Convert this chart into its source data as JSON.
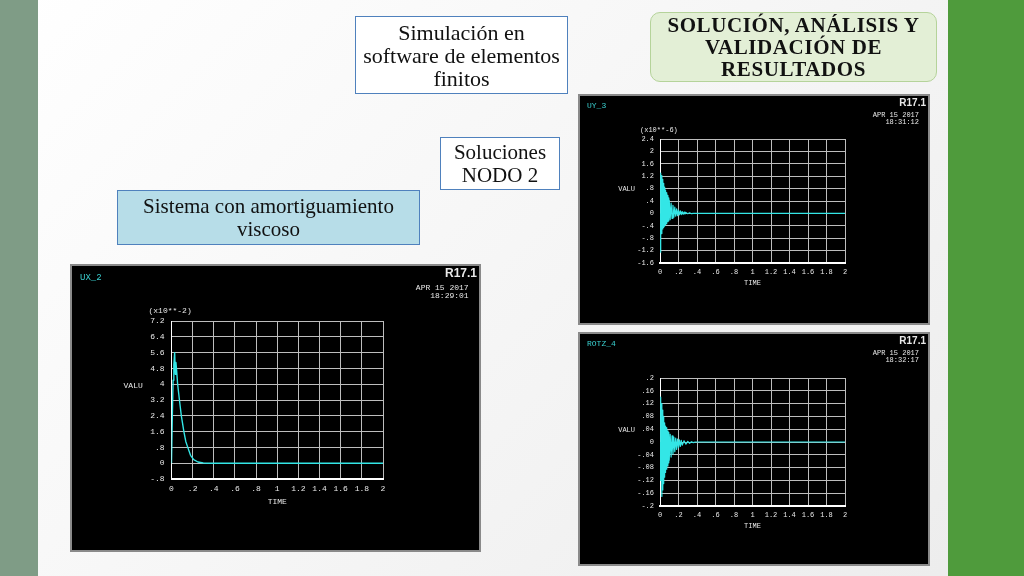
{
  "chart_data": [
    {
      "type": "other",
      "title": "SOLUCIÓN, ANÁLISIS Y VALIDACIÓN DE RESULTADOS",
      "annotations": [
        "Simulación en software de elementos finitos",
        "Soluciones NODO 2",
        "Sistema con amortiguamiento viscoso"
      ]
    },
    {
      "type": "line",
      "title": "UY_3",
      "xlabel": "TIME",
      "ylabel": "VALU",
      "annotations": [
        "R17.1",
        "APR 15 2017",
        "18:31:12",
        "(x10**-6)"
      ],
      "color": "#33e6e6",
      "x": [
        0,
        0.005,
        0.01,
        0.015,
        0.02,
        0.025,
        0.03,
        0.035,
        0.04,
        0.045,
        0.05,
        0.055,
        0.06,
        0.065,
        0.07,
        0.075,
        0.08,
        0.085,
        0.09,
        0.095,
        0.1,
        0.11,
        0.12,
        0.13,
        0.14,
        0.15,
        0.16,
        0.17,
        0.18,
        0.19,
        0.2,
        0.21,
        0.22,
        0.23,
        0.24,
        0.25,
        0.26,
        0.27,
        0.28,
        0.3,
        0.32,
        0.34,
        0.36,
        2
      ],
      "values": [
        0,
        -1.25,
        1.3,
        -0.65,
        1.22,
        -0.5,
        1.1,
        -0.45,
        0.97,
        -0.41,
        0.85,
        -0.37,
        0.75,
        -0.33,
        0.67,
        -0.3,
        0.58,
        -0.27,
        0.5,
        -0.24,
        0.43,
        -0.2,
        0.33,
        -0.16,
        0.26,
        -0.12,
        0.2,
        -0.09,
        0.15,
        -0.07,
        0.11,
        -0.05,
        0.08,
        -0.04,
        0.06,
        -0.03,
        0.04,
        -0.02,
        0.03,
        -0.01,
        0.02,
        -0.01,
        0,
        0
      ],
      "xlim": [
        0,
        2
      ],
      "xticks": [
        0,
        {
          "value": 0.2,
          "label": ".2"
        },
        {
          "value": 0.4,
          "label": ".4"
        },
        {
          "value": 0.6,
          "label": ".6"
        },
        {
          "value": 0.8,
          "label": ".8"
        },
        1,
        1.2,
        1.4,
        1.6,
        1.8,
        2
      ],
      "ylim": [
        -1.6,
        2.4
      ],
      "yticks": [
        -1.6,
        -1.2,
        {
          "value": -0.8,
          "label": "-.8"
        },
        {
          "value": -0.4,
          "label": "-.4"
        },
        0,
        {
          "value": 0.4,
          "label": ".4"
        },
        {
          "value": 0.8,
          "label": ".8"
        },
        1.2,
        1.6,
        2,
        2.4
      ],
      "grid": true
    },
    {
      "type": "line",
      "title": "UX_2",
      "xlabel": "TIME",
      "ylabel": "VALU",
      "annotations": [
        "R17.1",
        "APR 15 2017",
        "18:29:01",
        "(x10**-2)"
      ],
      "color": "#33e6e6",
      "x": [
        0,
        0.008,
        0.015,
        0.022,
        0.03,
        0.036,
        0.042,
        0.05,
        0.058,
        0.075,
        0.093,
        0.105,
        0.117,
        0.135,
        0.154,
        0.18,
        0.21,
        0.25,
        0.3,
        0.35,
        2
      ],
      "values": [
        0,
        2.4,
        4.2,
        5.0,
        5.6,
        4.5,
        5.1,
        4.6,
        4.0,
        3.2,
        2.4,
        2.0,
        1.6,
        1.1,
        0.8,
        0.4,
        0.18,
        0.06,
        0.01,
        0,
        0
      ],
      "xlim": [
        0,
        2
      ],
      "xticks": [
        0,
        {
          "value": 0.2,
          "label": ".2"
        },
        {
          "value": 0.4,
          "label": ".4"
        },
        {
          "value": 0.6,
          "label": ".6"
        },
        {
          "value": 0.8,
          "label": ".8"
        },
        1,
        1.2,
        1.4,
        1.6,
        1.8,
        2
      ],
      "ylim": [
        -0.8,
        7.2
      ],
      "yticks": [
        {
          "value": -0.8,
          "label": "-.8"
        },
        0,
        {
          "value": 0.8,
          "label": ".8"
        },
        1.6,
        2.4,
        3.2,
        4,
        4.8,
        5.6,
        6.4,
        7.2
      ],
      "grid": true
    },
    {
      "type": "line",
      "title": "ROTZ_4",
      "xlabel": "TIME",
      "ylabel": "VALU",
      "annotations": [
        "R17.1",
        "APR 15 2017",
        "18:32:17"
      ],
      "color": "#33e6e6",
      "x": [
        0,
        0.005,
        0.01,
        0.015,
        0.02,
        0.025,
        0.03,
        0.035,
        0.04,
        0.045,
        0.05,
        0.055,
        0.06,
        0.065,
        0.07,
        0.075,
        0.08,
        0.085,
        0.09,
        0.095,
        0.1,
        0.11,
        0.12,
        0.13,
        0.14,
        0.15,
        0.16,
        0.17,
        0.18,
        0.19,
        0.2,
        0.21,
        0.22,
        0.23,
        0.24,
        0.26,
        0.28,
        0.3,
        0.32,
        0.34,
        0.36,
        0.38,
        2
      ],
      "values": [
        0,
        0.14,
        -0.12,
        0.12,
        -0.17,
        0.1,
        -0.15,
        0.08,
        -0.13,
        0.06,
        -0.11,
        0.05,
        -0.095,
        0.045,
        -0.085,
        0.04,
        -0.075,
        0.035,
        -0.065,
        0.03,
        -0.057,
        0.024,
        -0.047,
        0.019,
        -0.038,
        0.015,
        -0.03,
        0.012,
        -0.023,
        0.009,
        -0.018,
        0.007,
        -0.014,
        0.005,
        -0.01,
        0.004,
        -0.007,
        0.002,
        -0.004,
        0.001,
        -0.002,
        0,
        0
      ],
      "xlim": [
        0,
        2
      ],
      "xticks": [
        0,
        {
          "value": 0.2,
          "label": ".2"
        },
        {
          "value": 0.4,
          "label": ".4"
        },
        {
          "value": 0.6,
          "label": ".6"
        },
        {
          "value": 0.8,
          "label": ".8"
        },
        1,
        1.2,
        1.4,
        1.6,
        1.8,
        2
      ],
      "ylim": [
        -0.2,
        0.2
      ],
      "yticks": [
        {
          "value": -0.2,
          "label": "-.2"
        },
        {
          "value": -0.16,
          "label": "-.16"
        },
        {
          "value": -0.12,
          "label": "-.12"
        },
        {
          "value": -0.08,
          "label": "-.08"
        },
        {
          "value": -0.04,
          "label": "-.04"
        },
        0,
        {
          "value": 0.04,
          "label": ".04"
        },
        {
          "value": 0.08,
          "label": ".08"
        },
        {
          "value": 0.12,
          "label": ".12"
        },
        {
          "value": 0.16,
          "label": ".16"
        },
        {
          "value": 0.2,
          "label": ".2"
        }
      ],
      "grid": true
    }
  ]
}
